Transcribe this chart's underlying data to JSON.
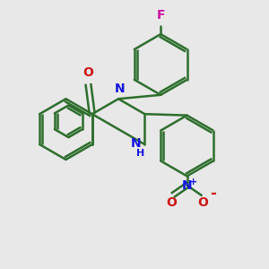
{
  "bg_color": "#e8e8e8",
  "bond_color": "#2d6e2d",
  "N_color": "#1414e6",
  "O_color": "#cc1414",
  "F_color": "#cc14a0",
  "bond_width": 1.8,
  "figsize": [
    3.0,
    3.0
  ],
  "dpi": 100,
  "xlim": [
    0,
    10
  ],
  "ylim": [
    0,
    10
  ]
}
